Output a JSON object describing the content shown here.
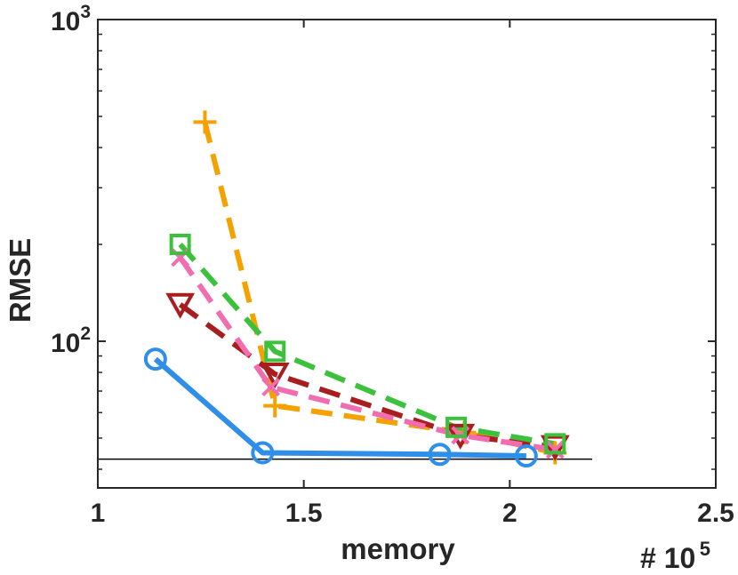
{
  "chart_data": {
    "type": "line",
    "xlabel": "memory",
    "ylabel": "RMSE",
    "x_multiplier_label": "# 10",
    "x_multiplier_exponent": "5",
    "xlim": [
      1.0,
      2.5
    ],
    "ylim": [
      35,
      1000
    ],
    "yscale": "log",
    "xticks": [
      {
        "value": 1.0,
        "label": "1"
      },
      {
        "value": 1.5,
        "label": "1.5"
      },
      {
        "value": 2.0,
        "label": "2"
      },
      {
        "value": 2.5,
        "label": "2.5"
      }
    ],
    "yticks": [
      {
        "value": 100,
        "base": "10",
        "exp": "2"
      },
      {
        "value": 1000,
        "base": "10",
        "exp": "3"
      }
    ],
    "grid": false,
    "reference_line": {
      "y": 43,
      "x": [
        1.0,
        2.2
      ],
      "color": "#000000"
    },
    "series": [
      {
        "marker": "circle",
        "dash": "solid",
        "color": "#2e8ee8",
        "x": [
          1.14,
          1.4,
          1.83,
          2.04
        ],
        "y": [
          88,
          45,
          44.5,
          44
        ]
      },
      {
        "marker": "square",
        "dash": "dashed",
        "color": "#3cc13c",
        "x": [
          1.2,
          1.43,
          1.87,
          2.11
        ],
        "y": [
          200,
          93,
          54,
          48
        ]
      },
      {
        "marker": "x",
        "dash": "dashed",
        "color": "#f26cb0",
        "x": [
          1.2,
          1.42,
          1.88,
          2.11
        ],
        "y": [
          182,
          72,
          51,
          46
        ]
      },
      {
        "marker": "triangle-down",
        "dash": "dashed",
        "color": "#a81e1e",
        "x": [
          1.2,
          1.43,
          1.88,
          2.11
        ],
        "y": [
          130,
          79,
          51,
          47
        ]
      },
      {
        "marker": "plus",
        "dash": "dashed",
        "color": "#f5a100",
        "x": [
          1.26,
          1.43,
          1.89,
          2.11
        ],
        "y": [
          480,
          63,
          52,
          45
        ]
      }
    ]
  }
}
